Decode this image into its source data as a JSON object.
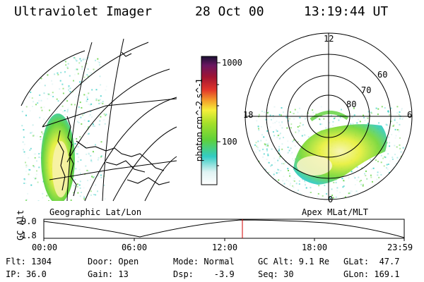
{
  "header": {
    "instrument": "Ultraviolet Imager",
    "date": "28 Oct 00",
    "time": "13:19:44 UT"
  },
  "colorbar": {
    "label": "photon cm^-2 s^-1",
    "ticks": [
      "1000",
      "100"
    ]
  },
  "left_panel": {
    "caption": "Geographic Lat/Lon"
  },
  "right_panel": {
    "caption": "Apex MLat/MLT",
    "mlt_labels": [
      "12",
      "18",
      "6",
      "0"
    ],
    "lat_labels": [
      "60",
      "70",
      "80"
    ]
  },
  "timeline": {
    "ylabel": "GC Alt",
    "ytick_top": "9.0",
    "ytick_bottom": "1.8",
    "xticks": [
      "00:00",
      "06:00",
      "12:00",
      "18:00",
      "23:59"
    ],
    "current_marker_time": "13:19:44"
  },
  "info": {
    "flt": "Flt: 1304",
    "ip": "IP: 36.0",
    "door": "Door: Open",
    "gain": "Gain: 13",
    "mode": "Mode: Normal",
    "dsp": "Dsp:    -3.9",
    "gcalt": "GC Alt: 9.1 Re",
    "seq": "Seq: 30",
    "glat": "GLat:  47.7",
    "glon": "GLon: 169.1"
  },
  "colors": {
    "low": "#dff3f3",
    "cyan": "#33ccc4",
    "green": "#5ed13a",
    "yellow": "#f6f03a",
    "red": "#c0162a",
    "top": "#1a1033"
  }
}
